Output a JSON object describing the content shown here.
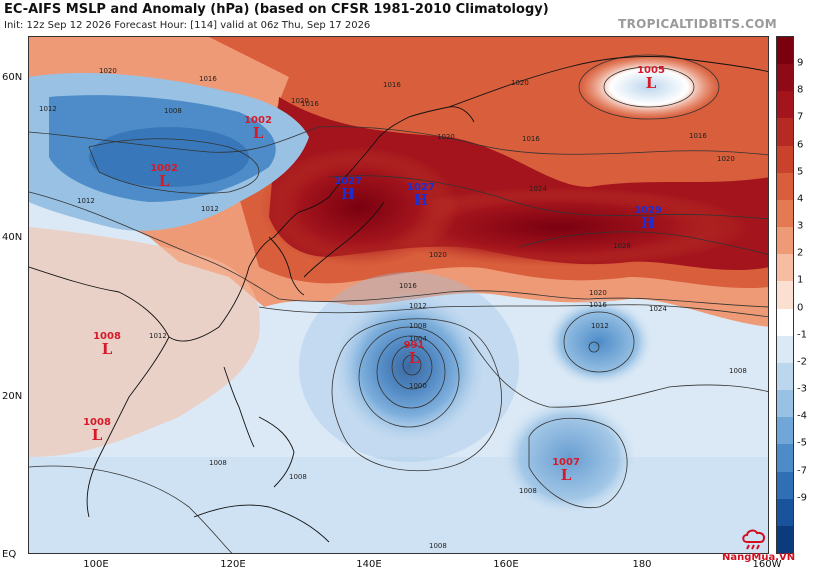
{
  "header": {
    "title": "EC-AIFS MSLP and Anomaly (hPa) (based on CFSR 1981-2010 Climatology)",
    "subtitle": "Init: 12z Sep 12 2026   Forecast Hour: [114]   valid at 06z Thu, Sep 17 2026",
    "brand": "TROPICALTIDBITS.COM"
  },
  "axes": {
    "lat_labels": [
      "60N",
      "40N",
      "20N",
      "EQ"
    ],
    "lon_labels": [
      "100E",
      "120E",
      "140E",
      "160E",
      "180",
      "160W"
    ]
  },
  "colorbar": {
    "labels": [
      "9",
      "8",
      "7",
      "6",
      "5",
      "4",
      "3",
      "2",
      "1",
      "0",
      "-1",
      "-2",
      "-3",
      "-4",
      "-5",
      "-7",
      "-9"
    ],
    "colors": [
      "#7a0010",
      "#8e0a16",
      "#a3141c",
      "#b52a22",
      "#c9432c",
      "#d85e3c",
      "#e47a52",
      "#ee9a76",
      "#f6bda2",
      "#fbe0d2",
      "#ffffff",
      "#dbe9f6",
      "#bcd6ee",
      "#98c1e4",
      "#71a7d8",
      "#4d8cc8",
      "#2f6fb4",
      "#18539b",
      "#0b3a7d"
    ]
  },
  "pressure_systems": [
    {
      "type": "L",
      "pressure": "1002",
      "where": "Mongolia"
    },
    {
      "type": "L",
      "pressure": "1002",
      "where": "Inner Mongolia"
    },
    {
      "type": "H",
      "pressure": "1027",
      "where": "Sea of Japan"
    },
    {
      "type": "H",
      "pressure": "1027",
      "where": "East of Hokkaido"
    },
    {
      "type": "H",
      "pressure": "1029",
      "where": "Central North Pacific"
    },
    {
      "type": "L",
      "pressure": "1005",
      "where": "Bering Sea"
    },
    {
      "type": "L",
      "pressure": "991",
      "where": "Typhoon east of Philippines"
    },
    {
      "type": "L",
      "pressure": "1008",
      "where": "Southern China"
    },
    {
      "type": "L",
      "pressure": "1008",
      "where": "Indochina"
    },
    {
      "type": "L",
      "pressure": "1007",
      "where": "Marshall Islands"
    }
  ],
  "contour_labels": [
    "1020",
    "1016",
    "1012",
    "1008",
    "1004",
    "1000",
    "1024",
    "1028"
  ],
  "watermark": {
    "text": "NangMua.VN"
  }
}
